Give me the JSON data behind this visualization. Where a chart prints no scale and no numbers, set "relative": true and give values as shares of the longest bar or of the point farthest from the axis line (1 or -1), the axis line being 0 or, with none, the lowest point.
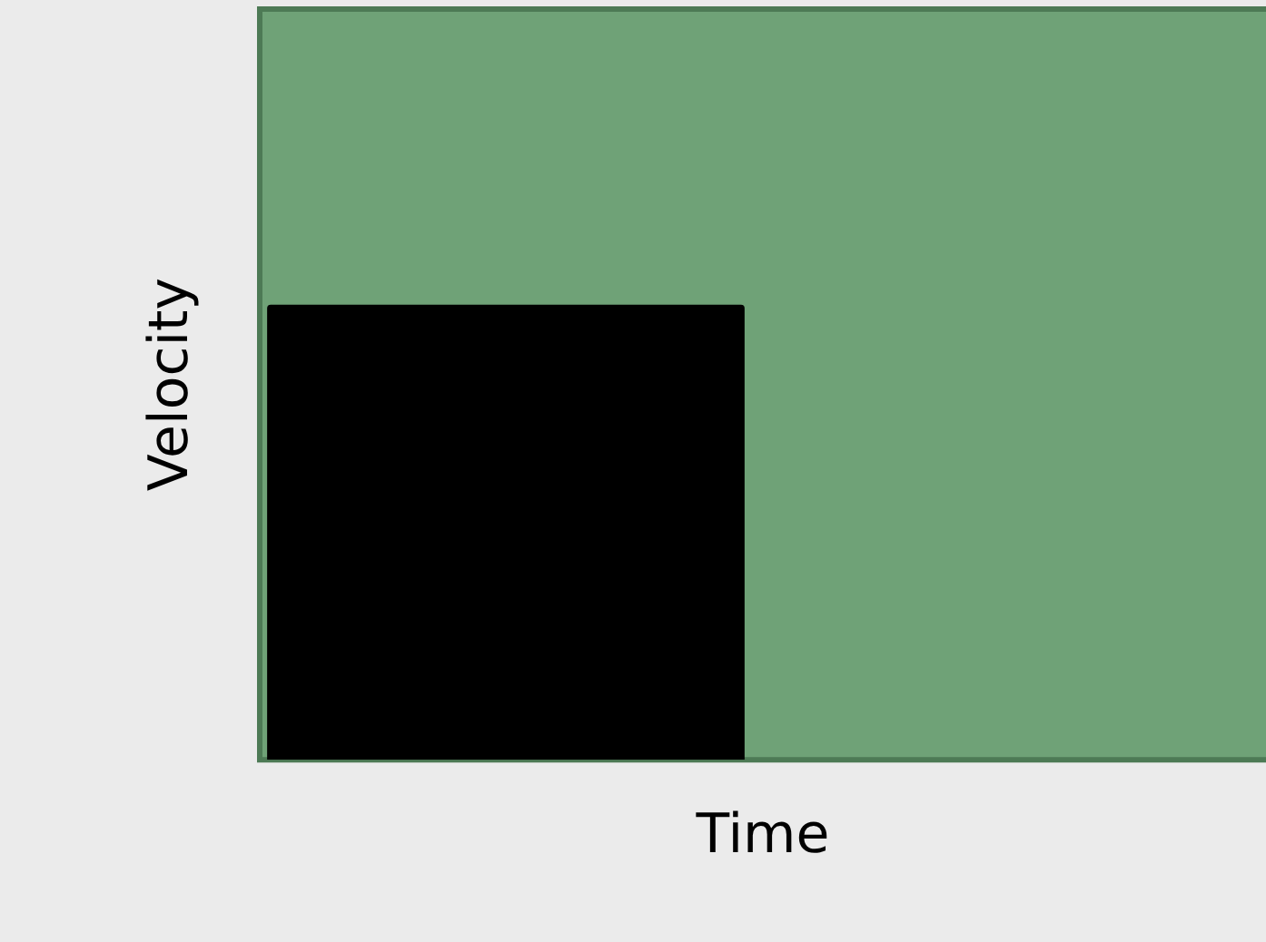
{
  "chart_data": {
    "type": "bar",
    "relative": true,
    "xlabel": "Time",
    "ylabel": "Velocity",
    "categories": [
      null
    ],
    "values": [
      1
    ],
    "color": "#000000",
    "grid": false,
    "legend": false
  }
}
